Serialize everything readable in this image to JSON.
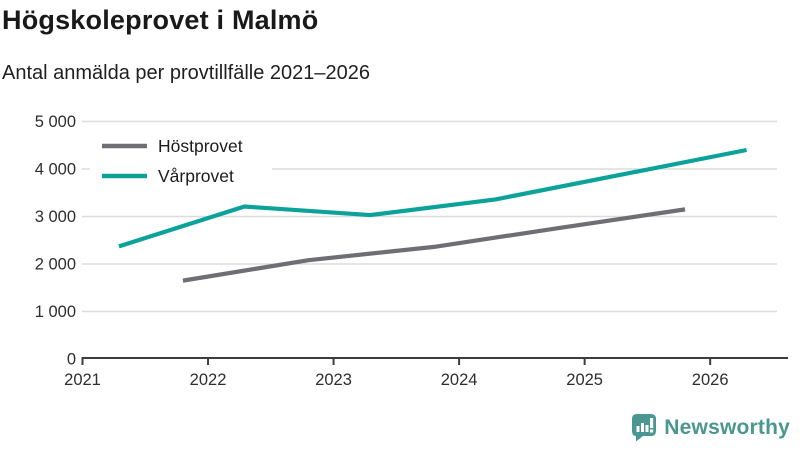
{
  "header": {
    "title": "Högskoleprovet i Malmö",
    "subtitle": "Antal anmälda per provtillfälle 2021–2026"
  },
  "chart_data": {
    "type": "line",
    "title": "Högskoleprovet i Malmö",
    "subtitle": "Antal anmälda per provtillfälle 2021–2026",
    "xlabel": "",
    "ylabel": "",
    "xlim": [
      2021,
      2026.62
    ],
    "ylim": [
      0,
      5000
    ],
    "x_tick_labels": [
      "2021",
      "2022",
      "2023",
      "2024",
      "2025",
      "2026"
    ],
    "x_tick_values": [
      2021,
      2022,
      2023,
      2024,
      2025,
      2026
    ],
    "y_tick_labels": [
      "0",
      "1 000",
      "2 000",
      "3 000",
      "4 000",
      "5 000"
    ],
    "y_tick_values": [
      0,
      1000,
      2000,
      3000,
      4000,
      5000
    ],
    "grid": "horizontal",
    "legend_position": "top-left",
    "series": [
      {
        "name": "Höstprovet",
        "color": "#6f6e74",
        "x": [
          2021.8,
          2022.8,
          2023.8,
          2024.8,
          2025.8
        ],
        "values": [
          1650,
          2080,
          2360,
          2760,
          3150
        ]
      },
      {
        "name": "Vårprovet",
        "color": "#0ba29a",
        "x": [
          2021.29,
          2022.29,
          2023.29,
          2024.29,
          2025.29,
          2026.29
        ],
        "values": [
          2370,
          3210,
          3030,
          3360,
          3880,
          4400
        ]
      }
    ]
  },
  "colors": {
    "grid": "#dcdcdc",
    "axis": "#3d3d3d",
    "tick_text": "#2e2e2e",
    "legend_text": "#1c1c1c"
  },
  "branding": {
    "logo_text": "Newsworthy",
    "logo_color": "#4a9792",
    "logo_icon": "bar-chart-speech-bubble"
  }
}
